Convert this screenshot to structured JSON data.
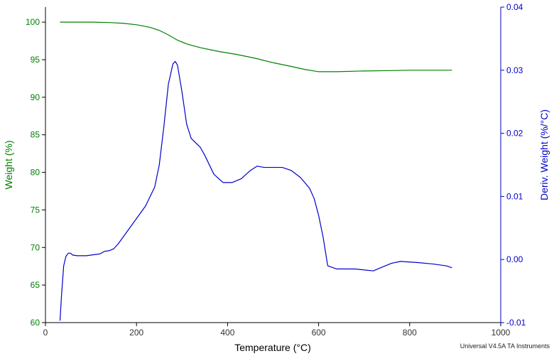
{
  "colors": {
    "weight": "#008000",
    "derivative": "#0000cc",
    "axis": "#000000"
  },
  "footer_text": "Universal V4.5A TA Instruments",
  "chart_data": {
    "type": "line",
    "xlabel": "Temperature (°C)",
    "ylabel_left": "Weight (%)",
    "ylabel_right": "Deriv. Weight (%/°C)",
    "xlim": [
      0,
      1000
    ],
    "ylim_left": [
      60,
      102
    ],
    "ylim_right": [
      -0.01,
      0.04
    ],
    "x_ticks": [
      "0",
      "200",
      "400",
      "600",
      "800",
      "1000"
    ],
    "y_ticks_left": [
      "60",
      "65",
      "70",
      "75",
      "80",
      "85",
      "90",
      "95",
      "100"
    ],
    "y_ticks_right": [
      "-0.01",
      "0.00",
      "0.01",
      "0.02",
      "0.03",
      "0.04"
    ],
    "grid": false,
    "series": [
      {
        "axis": "left",
        "color": "#008000",
        "x": [
          32,
          60,
          100,
          140,
          170,
          200,
          230,
          250,
          270,
          290,
          310,
          340,
          380,
          420,
          460,
          500,
          540,
          570,
          600,
          640,
          700,
          760,
          800,
          850,
          893
        ],
        "y": [
          100.0,
          100.0,
          100.0,
          99.95,
          99.85,
          99.65,
          99.3,
          98.9,
          98.3,
          97.6,
          97.1,
          96.6,
          96.1,
          95.7,
          95.2,
          94.6,
          94.1,
          93.7,
          93.4,
          93.4,
          93.5,
          93.55,
          93.6,
          93.6,
          93.6
        ]
      },
      {
        "axis": "right",
        "color": "#0000cc",
        "x": [
          32,
          35,
          40,
          45,
          50,
          55,
          60,
          70,
          90,
          110,
          120,
          130,
          140,
          150,
          160,
          180,
          200,
          220,
          240,
          250,
          260,
          270,
          280,
          285,
          290,
          300,
          310,
          320,
          340,
          350,
          370,
          390,
          410,
          430,
          450,
          465,
          480,
          500,
          520,
          540,
          560,
          580,
          590,
          600,
          610,
          620,
          640,
          680,
          720,
          740,
          760,
          780,
          800,
          820,
          850,
          880,
          893
        ],
        "y": [
          -0.0097,
          -0.006,
          -0.001,
          0.0005,
          0.001,
          0.001,
          0.0007,
          0.0006,
          0.0006,
          0.0008,
          0.0009,
          0.0013,
          0.0014,
          0.0017,
          0.0025,
          0.0045,
          0.0065,
          0.0085,
          0.0115,
          0.015,
          0.021,
          0.0278,
          0.031,
          0.0314,
          0.0308,
          0.0265,
          0.0215,
          0.0192,
          0.0178,
          0.0165,
          0.0135,
          0.0122,
          0.0122,
          0.0128,
          0.0141,
          0.0148,
          0.0146,
          0.0146,
          0.0146,
          0.0141,
          0.013,
          0.0113,
          0.0097,
          0.007,
          0.0035,
          -0.001,
          -0.0015,
          -0.0015,
          -0.0018,
          -0.0012,
          -0.0006,
          -0.0003,
          -0.0004,
          -0.0005,
          -0.0007,
          -0.001,
          -0.0013
        ]
      }
    ]
  }
}
